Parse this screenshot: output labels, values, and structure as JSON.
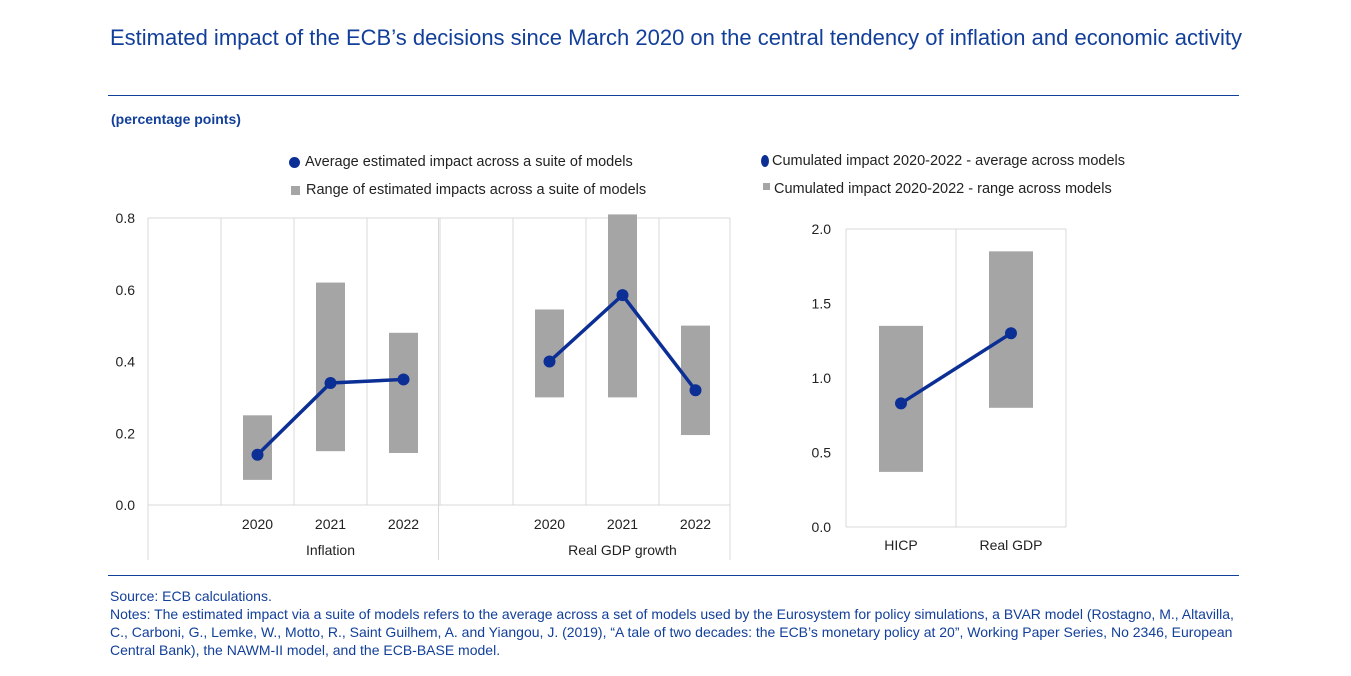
{
  "title": "Estimated impact of the ECB’s decisions since March 2020 on the central tendency of inflation and economic activity",
  "subtitle": "(percentage points)",
  "legend_left": {
    "average": "Average estimated impact across a suite of models",
    "range": "Range of estimated impacts across a suite of models"
  },
  "legend_right": {
    "average": "Cumulated impact  2020-2022 - average across models",
    "range": "Cumulated impact 2020-2022 - range across models"
  },
  "source": "Source: ECB calculations.",
  "notes": "Notes: The estimated impact via a suite of models refers to the average across a set of models used by the Eurosystem for policy simulations, a BVAR model (Rostagno, M., Altavilla, C., Carboni, G., Lemke, W., Motto, R., Saint Guilhem, A. and Yiangou, J. (2019), “A tale of two decades: the ECB’s monetary policy at 20”, Working Paper Series, No 2346, European Central Bank), the NAWM-II model, and the ECB-BASE model.",
  "colors": {
    "accent": "#123f9a",
    "line": "#0c2f96",
    "range": "#a5a5a5",
    "grid": "#d9d9d9"
  },
  "chart_data": [
    {
      "type": "line",
      "groups": [
        {
          "name": "Inflation",
          "categories": [
            "2020",
            "2021",
            "2022"
          ],
          "average": [
            0.14,
            0.34,
            0.35
          ],
          "range_low": [
            0.07,
            0.15,
            0.145
          ],
          "range_high": [
            0.25,
            0.62,
            0.48
          ]
        },
        {
          "name": "Real GDP growth",
          "categories": [
            "2020",
            "2021",
            "2022"
          ],
          "average": [
            0.4,
            0.585,
            0.32
          ],
          "range_low": [
            0.3,
            0.3,
            0.195
          ],
          "range_high": [
            0.545,
            0.81,
            0.5
          ]
        }
      ],
      "y_ticks": [
        "0.0",
        "0.2",
        "0.4",
        "0.6",
        "0.8"
      ],
      "ylim": [
        0,
        0.8
      ],
      "grid": true
    },
    {
      "type": "line",
      "categories": [
        "HICP",
        "Real GDP"
      ],
      "average": [
        0.83,
        1.3
      ],
      "range_low": [
        0.37,
        0.8
      ],
      "range_high": [
        1.35,
        1.85
      ],
      "y_ticks": [
        "0.0",
        "0.5",
        "1.0",
        "1.5",
        "2.0"
      ],
      "ylim": [
        0,
        2.0
      ],
      "grid": true
    }
  ]
}
